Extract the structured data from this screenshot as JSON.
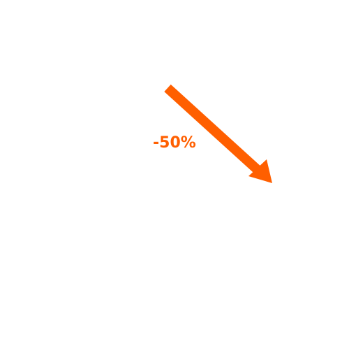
{
  "change": {
    "label": "-50%",
    "direction": "down-right"
  },
  "colors": {
    "accent": "#ff5f00",
    "background": "#ffffff"
  },
  "icons": {
    "arrow": "arrow-down-right-icon"
  }
}
